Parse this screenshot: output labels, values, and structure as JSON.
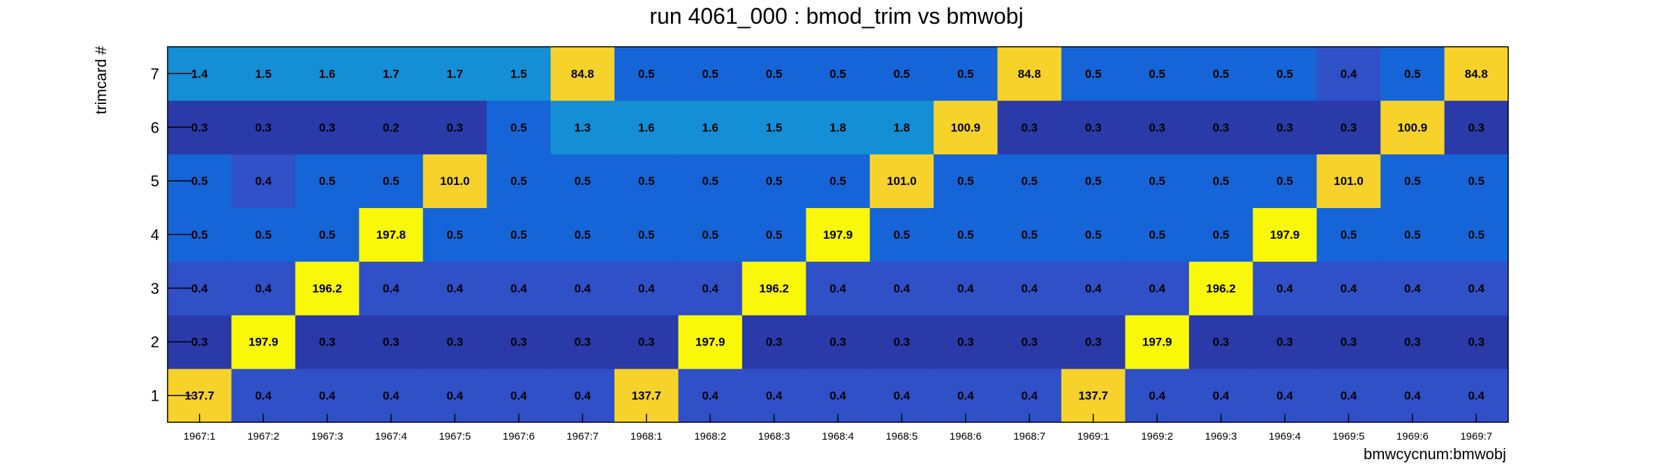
{
  "chart_data": {
    "type": "heatmap",
    "title": "run 4061_000 : bmod_trim vs bmwobj",
    "xlabel": "bmwcycnum:bmwobj",
    "ylabel": "trimcard #",
    "x_categories": [
      "1967:1",
      "1967:2",
      "1967:3",
      "1967:4",
      "1967:5",
      "1967:6",
      "1967:7",
      "1968:1",
      "1968:2",
      "1968:3",
      "1968:4",
      "1968:5",
      "1968:6",
      "1968:7",
      "1969:1",
      "1969:2",
      "1969:3",
      "1969:4",
      "1969:5",
      "1969:6",
      "1969:7"
    ],
    "y_categories": [
      "1",
      "2",
      "3",
      "4",
      "5",
      "6",
      "7"
    ],
    "values": [
      [
        137.7,
        0.4,
        0.4,
        0.4,
        0.4,
        0.4,
        0.4,
        137.7,
        0.4,
        0.4,
        0.4,
        0.4,
        0.4,
        0.4,
        137.7,
        0.4,
        0.4,
        0.4,
        0.4,
        0.4,
        0.4
      ],
      [
        0.3,
        197.9,
        0.3,
        0.3,
        0.3,
        0.3,
        0.3,
        0.3,
        197.9,
        0.3,
        0.3,
        0.3,
        0.3,
        0.3,
        0.3,
        197.9,
        0.3,
        0.3,
        0.3,
        0.3,
        0.3
      ],
      [
        0.4,
        0.4,
        196.2,
        0.4,
        0.4,
        0.4,
        0.4,
        0.4,
        0.4,
        196.2,
        0.4,
        0.4,
        0.4,
        0.4,
        0.4,
        0.4,
        196.2,
        0.4,
        0.4,
        0.4,
        0.4
      ],
      [
        0.5,
        0.5,
        0.5,
        197.8,
        0.5,
        0.5,
        0.5,
        0.5,
        0.5,
        0.5,
        197.9,
        0.5,
        0.5,
        0.5,
        0.5,
        0.5,
        0.5,
        197.9,
        0.5,
        0.5,
        0.5
      ],
      [
        0.5,
        0.4,
        0.5,
        0.5,
        101.0,
        0.5,
        0.5,
        0.5,
        0.5,
        0.5,
        0.5,
        101.0,
        0.5,
        0.5,
        0.5,
        0.5,
        0.5,
        0.5,
        101.0,
        0.5,
        0.5
      ],
      [
        0.3,
        0.3,
        0.3,
        0.2,
        0.3,
        0.5,
        1.3,
        1.6,
        1.6,
        1.5,
        1.8,
        1.8,
        100.9,
        0.3,
        0.3,
        0.3,
        0.3,
        0.3,
        0.3,
        100.9,
        0.3
      ],
      [
        1.4,
        1.5,
        1.6,
        1.7,
        1.7,
        1.5,
        84.8,
        0.5,
        0.5,
        0.5,
        0.5,
        0.5,
        0.5,
        84.8,
        0.5,
        0.5,
        0.5,
        0.5,
        0.4,
        0.5,
        84.8
      ]
    ],
    "value_format": "0.1",
    "colors": {
      "very_low": "#2a3aa8",
      "low": "#3050c8",
      "mid_low": "#1565d8",
      "mid": "#148ed4",
      "high": "#f6d22a",
      "max": "#f8f808"
    },
    "grid": false,
    "legend": "none"
  }
}
